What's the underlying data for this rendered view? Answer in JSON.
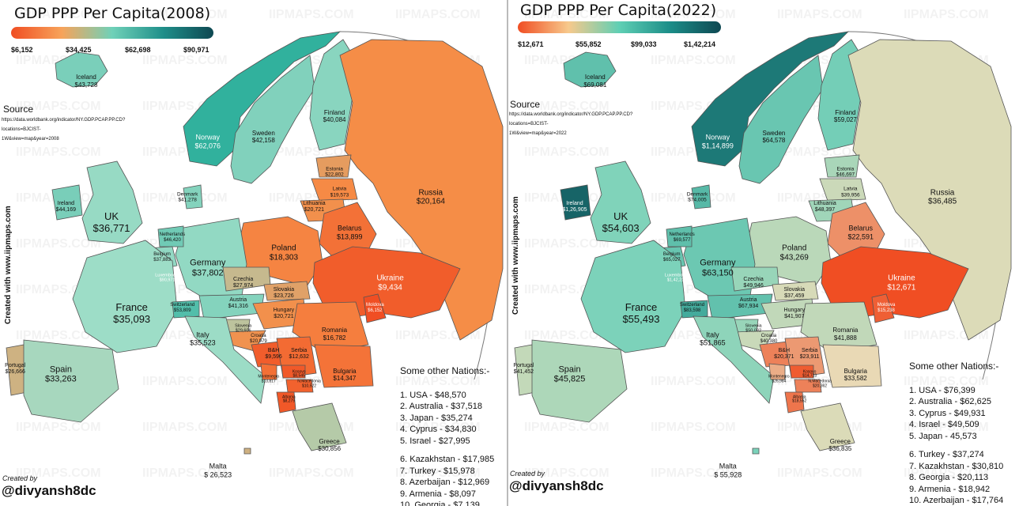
{
  "watermark": "IIPMAPS.COM",
  "side_text": "Created with www.iipmaps.com",
  "created_by": "Created by",
  "handle": "@divyansh8dc",
  "source_label": "Source",
  "others_heading": "Some other Nations:-",
  "colors": {
    "orange": "#f26522",
    "red": "#e8331c",
    "teal": "#3ec1a8",
    "dark_teal": "#0d4a52",
    "beige": "#e9dcb8",
    "light_orange": "#f6ab57"
  },
  "panels": [
    {
      "title": "GDP PPP Per Capita(2008)",
      "ticks": [
        "$6,152",
        "$34,425",
        "$62,698",
        "$90,971"
      ],
      "source_lines": [
        "https://data.worldbank.org/indicator/NY.GDP.PCAP.PP.CD?",
        "locations=BJCIST-",
        "1W&view=map&year=2008"
      ],
      "others": [
        "1. USA - $48,570",
        "2. Australia - $37,518",
        "3. Japan - $35,274",
        "4. Cyprus - $34,830",
        "5. Israel - $27,995",
        "6. Kazakhstan - $17,985",
        "7. Turkey - $15,978",
        "8. Azerbaijan - $12,969",
        "9. Armenia - $8,097",
        "10. Georgia - $7,139"
      ],
      "countries": [
        {
          "name": "Iceland",
          "value": "$43,728"
        },
        {
          "name": "Norway",
          "value": "$62,076"
        },
        {
          "name": "Sweden",
          "value": "$42,158"
        },
        {
          "name": "Finland",
          "value": "$40,084"
        },
        {
          "name": "Russia",
          "value": "$20,164"
        },
        {
          "name": "Estonia",
          "value": "$22,802"
        },
        {
          "name": "Latvia",
          "value": "$19,573"
        },
        {
          "name": "Lithuania",
          "value": "$20,721"
        },
        {
          "name": "Denmark",
          "value": "$41,278"
        },
        {
          "name": "Ireland",
          "value": "$44,169"
        },
        {
          "name": "UK",
          "value": "$36,771"
        },
        {
          "name": "Belarus",
          "value": "$13,899"
        },
        {
          "name": "Poland",
          "value": "$18,303"
        },
        {
          "name": "Germany",
          "value": "$37,802"
        },
        {
          "name": "Netherlands",
          "value": "$46,420"
        },
        {
          "name": "Belgium",
          "value": "$37,883"
        },
        {
          "name": "Luxembourg",
          "value": "$90,971"
        },
        {
          "name": "Czechia",
          "value": "$27,974"
        },
        {
          "name": "Slovakia",
          "value": "$23,726"
        },
        {
          "name": "Ukraine",
          "value": "$9,434"
        },
        {
          "name": "Moldova",
          "value": "$6,152"
        },
        {
          "name": "France",
          "value": "$35,093"
        },
        {
          "name": "Switzerland",
          "value": "$53,809"
        },
        {
          "name": "Austria",
          "value": "$41,316"
        },
        {
          "name": "Hungary",
          "value": "$20,721"
        },
        {
          "name": "Slovenia",
          "value": "$29,606"
        },
        {
          "name": "Croatia",
          "value": "$20,979"
        },
        {
          "name": "Romania",
          "value": "$16,782"
        },
        {
          "name": "Italy",
          "value": "$35,523"
        },
        {
          "name": "B&H",
          "value": "$9,596"
        },
        {
          "name": "Serbia",
          "value": "$12,632"
        },
        {
          "name": "Bulgaria",
          "value": "$14,347"
        },
        {
          "name": "Montenegro",
          "value": "$13,817"
        },
        {
          "name": "Kosovo",
          "value": "$8,545"
        },
        {
          "name": "N.Macedonia",
          "value": "$10,522"
        },
        {
          "name": "Albania",
          "value": "$8,279"
        },
        {
          "name": "Portugal",
          "value": "$26,666"
        },
        {
          "name": "Spain",
          "value": "$33,263"
        },
        {
          "name": "Greece",
          "value": "$30,856"
        },
        {
          "name": "Malta",
          "value": "$ 26,523"
        }
      ]
    },
    {
      "title": "GDP PPP Per Capita(2022)",
      "ticks": [
        "$12,671",
        "$55,852",
        "$99,033",
        "$1,42,214"
      ],
      "source_lines": [
        "https://data.worldbank.org/indicator/NY.GDP.PCAP.PP.CD?",
        "locations=BJCIST-",
        "1W&view=map&year=2022"
      ],
      "others": [
        "1. USA - $76,399",
        "2. Australia - $62,625",
        "3. Cyprus - $49,931",
        "4. Israel - $49,509",
        "5. Japan - 45,573",
        "6. Turkey - $37,274",
        "7. Kazakhstan - $30,810",
        "8. Georgia - $20,113",
        "9. Armenia - $18,942",
        "10. Azerbaijan - $17,764"
      ],
      "countries": [
        {
          "name": "Iceland",
          "value": "$69,081"
        },
        {
          "name": "Norway",
          "value": "$1,14,899"
        },
        {
          "name": "Sweden",
          "value": "$64,578"
        },
        {
          "name": "Finland",
          "value": "$59,027"
        },
        {
          "name": "Russia",
          "value": "$36,485"
        },
        {
          "name": "Estonia",
          "value": "$46,697"
        },
        {
          "name": "Latvia",
          "value": "$39,956"
        },
        {
          "name": "Lithuania",
          "value": "$48,397"
        },
        {
          "name": "Denmark",
          "value": "$74,005"
        },
        {
          "name": "Ireland",
          "value": "$1,26,905"
        },
        {
          "name": "UK",
          "value": "$54,603"
        },
        {
          "name": "Belarus",
          "value": "$22,591"
        },
        {
          "name": "Poland",
          "value": "$43,269"
        },
        {
          "name": "Germany",
          "value": "$63,150"
        },
        {
          "name": "Netherlands",
          "value": "$69,577"
        },
        {
          "name": "Belgium",
          "value": "$65,027"
        },
        {
          "name": "Luxembourg",
          "value": "$1,42,214"
        },
        {
          "name": "Czechia",
          "value": "$49,946"
        },
        {
          "name": "Slovakia",
          "value": "$37,459"
        },
        {
          "name": "Ukraine",
          "value": "$12,671"
        },
        {
          "name": "Moldova",
          "value": "$15,238"
        },
        {
          "name": "France",
          "value": "$55,493"
        },
        {
          "name": "Switzerland",
          "value": "$83,598"
        },
        {
          "name": "Austria",
          "value": "$67,934"
        },
        {
          "name": "Hungary",
          "value": "$41,907"
        },
        {
          "name": "Slovenia",
          "value": "$50,032"
        },
        {
          "name": "Croatia",
          "value": "$40,380"
        },
        {
          "name": "Romania",
          "value": "$41,888"
        },
        {
          "name": "Italy",
          "value": "$51,865"
        },
        {
          "name": "B&H",
          "value": "$20,371"
        },
        {
          "name": "Serbia",
          "value": "$23,911"
        },
        {
          "name": "Bulgaria",
          "value": "$33,582"
        },
        {
          "name": "Montenegro",
          "value": "$26,984"
        },
        {
          "name": "Kosovo",
          "value": "$14,723"
        },
        {
          "name": "N.Macedonia",
          "value": "$20,362"
        },
        {
          "name": "Albania",
          "value": "$18,552"
        },
        {
          "name": "Portugal",
          "value": "$41,452"
        },
        {
          "name": "Spain",
          "value": "$45,825"
        },
        {
          "name": "Greece",
          "value": "$36,835"
        },
        {
          "name": "Malta",
          "value": "$ 55,928"
        }
      ]
    }
  ]
}
